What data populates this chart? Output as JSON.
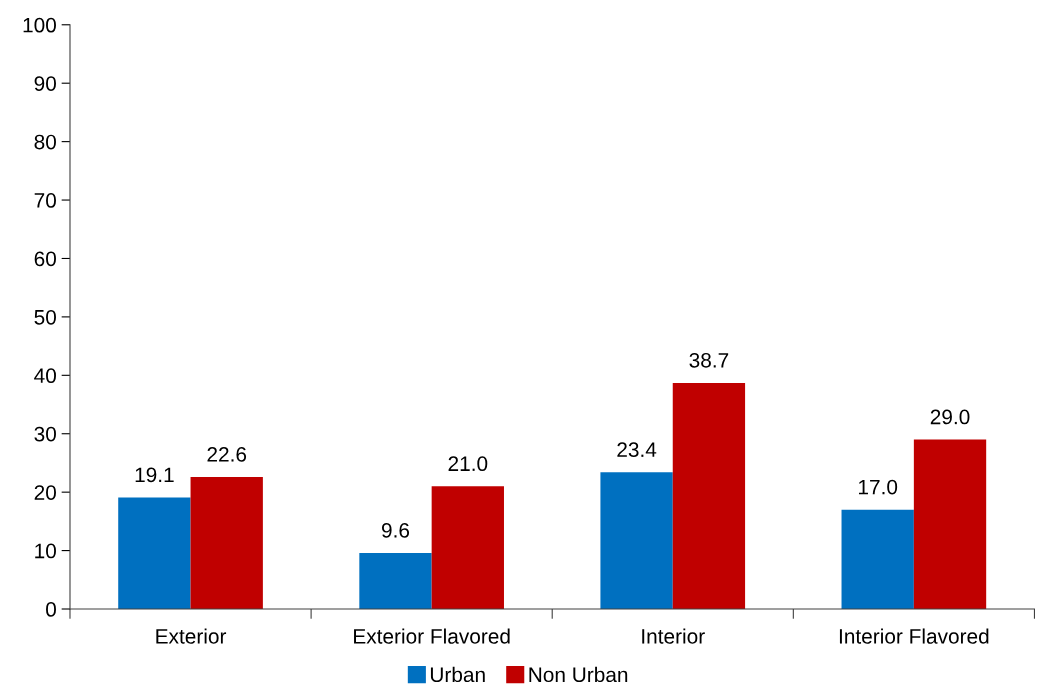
{
  "chart_data": {
    "type": "bar",
    "categories": [
      "Exterior",
      "Exterior Flavored",
      "Interior",
      "Interior Flavored"
    ],
    "series": [
      {
        "name": "Urban",
        "color": "#0070c0",
        "values": [
          19.1,
          9.6,
          23.4,
          17.0
        ],
        "value_labels": [
          "19.1",
          "9.6",
          "23.4",
          "17.0"
        ]
      },
      {
        "name": "Non Urban",
        "color": "#c00000",
        "values": [
          22.6,
          21.0,
          38.7,
          29.0
        ],
        "value_labels": [
          "22.6",
          "21.0",
          "38.7",
          "29.0"
        ]
      }
    ],
    "ylim": [
      0,
      100
    ],
    "yticks": [
      0,
      10,
      20,
      30,
      40,
      50,
      60,
      70,
      80,
      90,
      100
    ],
    "grid": false,
    "legend": "bottom"
  }
}
